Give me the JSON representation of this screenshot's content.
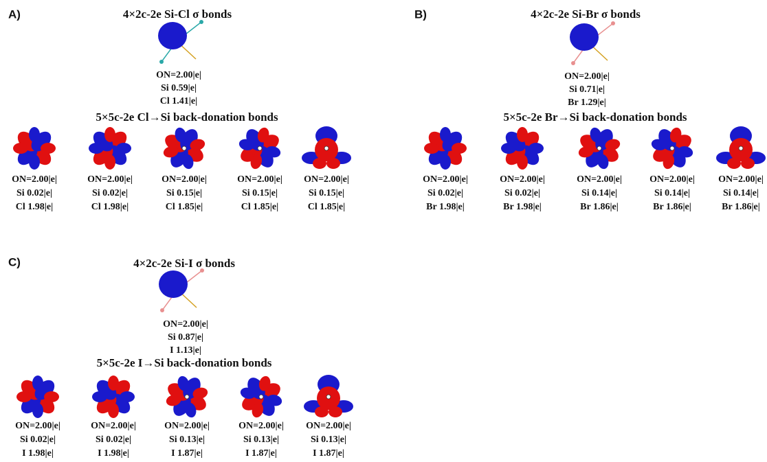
{
  "panels": [
    {
      "label": "A)",
      "sigma_title": "4×2c-2e Si-Cl σ bonds",
      "sigma_lines": [
        "ON=2.00|e|",
        "Si 0.59|e|",
        "Cl 1.41|e|"
      ],
      "backdonation_title": "5×5c-2e Cl→Si back-donation bonds",
      "orbitals": [
        [
          "ON=2.00|e|",
          "Si 0.02|e|",
          "Cl 1.98|e|"
        ],
        [
          "ON=2.00|e|",
          "Si 0.02|e|",
          "Cl 1.98|e|"
        ],
        [
          "ON=2.00|e|",
          "Si 0.15|e|",
          "Cl 1.85|e|"
        ],
        [
          "ON=2.00|e|",
          "Si 0.15|e|",
          "Cl 1.85|e|"
        ],
        [
          "ON=2.00|e|",
          "Si 0.15|e|",
          "Cl 1.85|e|"
        ]
      ]
    },
    {
      "label": "B)",
      "sigma_title": "4×2c-2e Si-Br σ bonds",
      "sigma_lines": [
        "ON=2.00|e|",
        "Si 0.71|e|",
        "Br 1.29|e|"
      ],
      "backdonation_title": "5×5c-2e Br→Si back-donation bonds",
      "orbitals": [
        [
          "ON=2.00|e|",
          "Si 0.02|e|",
          "Br 1.98|e|"
        ],
        [
          "ON=2.00|e|",
          "Si 0.02|e|",
          "Br 1.98|e|"
        ],
        [
          "ON=2.00|e|",
          "Si 0.14|e|",
          "Br 1.86|e|"
        ],
        [
          "ON=2.00|e|",
          "Si 0.14|e|",
          "Br 1.86|e|"
        ],
        [
          "ON=2.00|e|",
          "Si 0.14|e|",
          "Br 1.86|e|"
        ]
      ]
    },
    {
      "label": "C)",
      "sigma_title": "4×2c-2e Si-I σ bonds",
      "sigma_lines": [
        "ON=2.00|e|",
        "Si 0.87|e|",
        "I 1.13|e|"
      ],
      "backdonation_title": "5×5c-2e I→Si back-donation bonds",
      "orbitals": [
        [
          "ON=2.00|e|",
          "Si 0.02|e|",
          "I 1.98|e|"
        ],
        [
          "ON=2.00|e|",
          "Si 0.02|e|",
          "I 1.98|e|"
        ],
        [
          "ON=2.00|e|",
          "Si 0.13|e|",
          "I 1.87|e|"
        ],
        [
          "ON=2.00|e|",
          "Si 0.13|e|",
          "I 1.87|e|"
        ],
        [
          "ON=2.00|e|",
          "Si 0.13|e|",
          "I 1.87|e|"
        ]
      ]
    }
  ]
}
